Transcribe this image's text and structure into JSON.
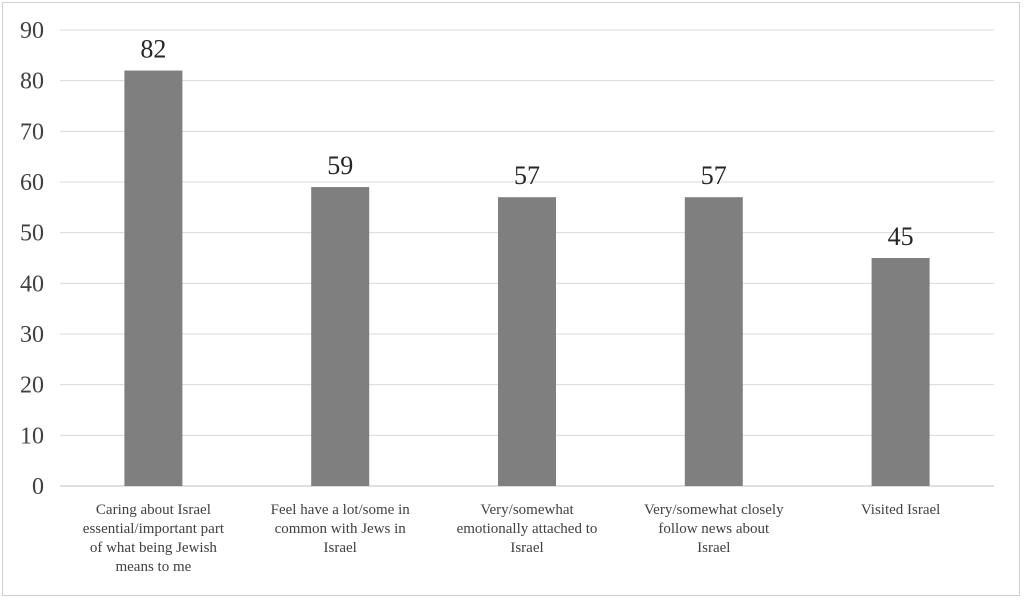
{
  "chart_data": {
    "type": "bar",
    "title": "",
    "xlabel": "",
    "ylabel": "",
    "categories": [
      [
        "Caring about Israel",
        "essential/important part",
        "of what being Jewish",
        "means to me"
      ],
      [
        "Feel have a lot/some in",
        "common with Jews in",
        "Israel"
      ],
      [
        "Very/somewhat",
        "emotionally attached to",
        "Israel"
      ],
      [
        "Very/somewhat closely",
        "follow news about",
        "Israel"
      ],
      [
        "Visited Israel"
      ]
    ],
    "values": [
      82,
      59,
      57,
      57,
      45
    ],
    "ylim": [
      0,
      90
    ],
    "yticks": [
      0,
      10,
      20,
      30,
      40,
      50,
      60,
      70,
      80,
      90
    ],
    "grid": true,
    "legend": "none",
    "bar_color": "#7f7f7f"
  }
}
